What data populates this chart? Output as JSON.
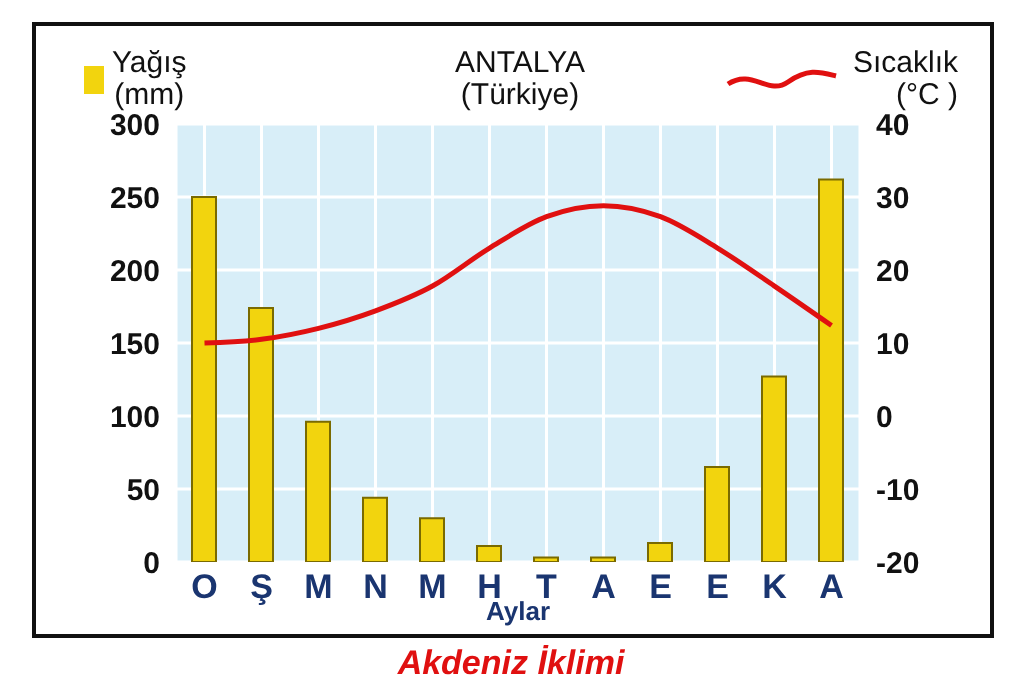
{
  "chart_data": {
    "type": "bar",
    "title": "ANTALYA (Türkiye)",
    "xlabel": "Aylar",
    "annotations": [
      "Akdeniz İklimi"
    ],
    "categories": [
      "O",
      "Ş",
      "M",
      "N",
      "M",
      "H",
      "T",
      "A",
      "E",
      "E",
      "K",
      "A"
    ],
    "series": [
      {
        "name": "Yağış (mm)",
        "color": "#f2d40e",
        "values": [
          250,
          174,
          96,
          44,
          30,
          11,
          3,
          3,
          13,
          65,
          127,
          262
        ]
      },
      {
        "name": "Sıcaklık (°C )",
        "type": "line",
        "axis": "y2",
        "color": "#e01010",
        "values": [
          10,
          10.5,
          12,
          14.4,
          17.8,
          23,
          27.3,
          28.8,
          27.3,
          23,
          17.8,
          12.4
        ]
      }
    ],
    "ylim": [
      0,
      300
    ],
    "yticks": [
      0,
      50,
      100,
      150,
      200,
      250,
      300
    ],
    "y2lim": [
      -20,
      40
    ],
    "y2ticks": [
      -20,
      -10,
      0,
      10,
      20,
      30,
      40
    ],
    "grid": true,
    "legend": "top",
    "marker": "none",
    "line_style": "solid"
  }
}
